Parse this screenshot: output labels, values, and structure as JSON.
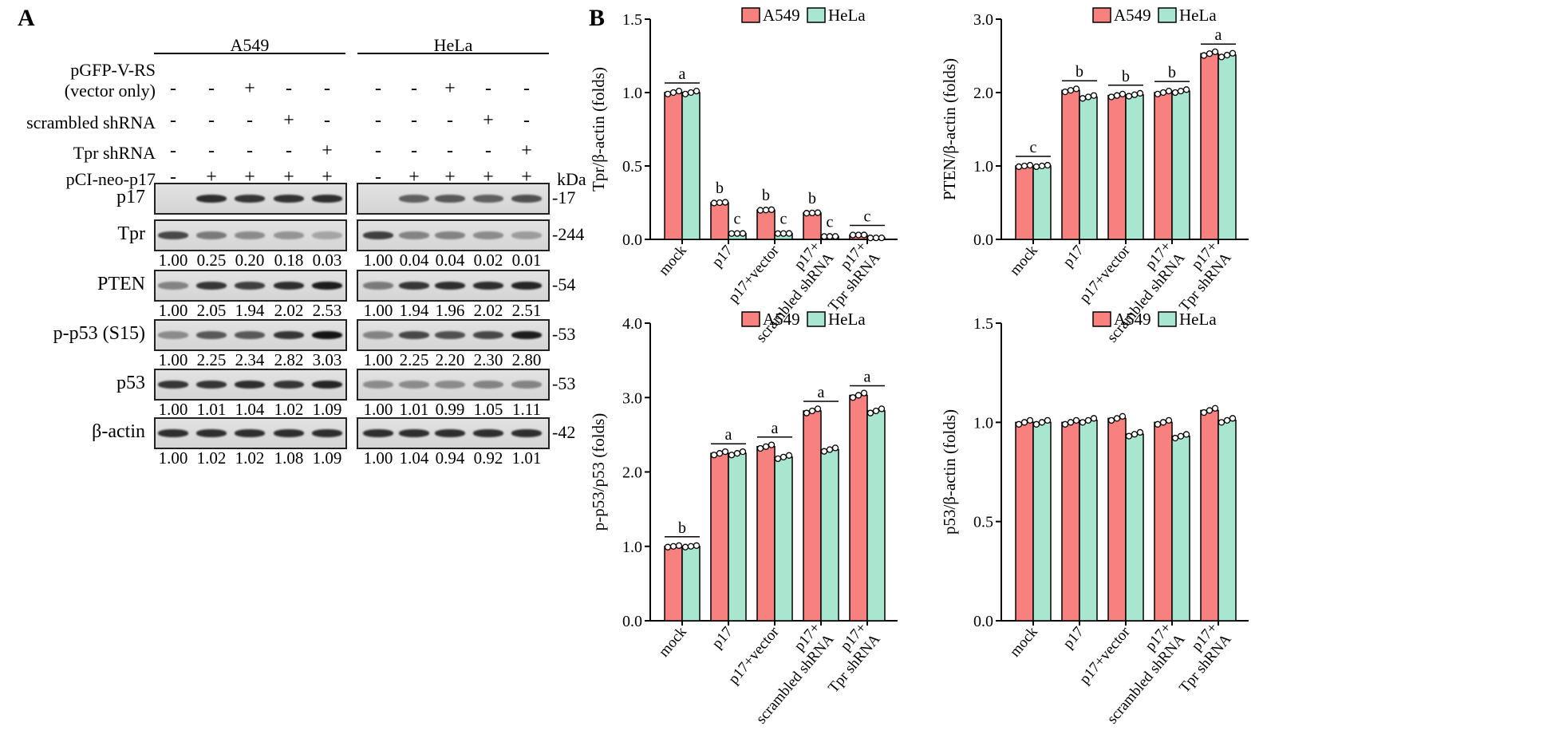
{
  "panel_a": {
    "letter": "A",
    "groups": [
      "A549",
      "HeLa"
    ],
    "conditions": [
      {
        "label": "pGFP-V-RS",
        "symbols": [
          "",
          "",
          "",
          "",
          ""
        ]
      },
      {
        "label": "(vector only)",
        "symbols": [
          "-",
          "-",
          "+",
          "-",
          "-"
        ]
      },
      {
        "label": "scrambled shRNA",
        "symbols": [
          "-",
          "-",
          "-",
          "+",
          "-"
        ]
      },
      {
        "label": "Tpr shRNA",
        "symbols": [
          "-",
          "-",
          "-",
          "-",
          "+"
        ]
      },
      {
        "label": "pCI-neo-p17",
        "symbols": [
          "-",
          "+",
          "+",
          "+",
          "+"
        ]
      }
    ],
    "kda_label": "kDa",
    "blots": [
      {
        "name": "p17",
        "kda": "-17",
        "a549": [
          0.0,
          0.85,
          0.8,
          0.82,
          0.85
        ],
        "hela": [
          0.0,
          0.55,
          0.6,
          0.55,
          0.65
        ],
        "a549_vals": [],
        "hela_vals": []
      },
      {
        "name": "Tpr",
        "kda": "-244",
        "a549": [
          0.7,
          0.4,
          0.3,
          0.25,
          0.15
        ],
        "hela": [
          0.75,
          0.35,
          0.35,
          0.3,
          0.2
        ],
        "a549_vals": [
          "1.00",
          "0.25",
          "0.20",
          "0.18",
          "0.03"
        ],
        "hela_vals": [
          "1.00",
          "0.04",
          "0.04",
          "0.02",
          "0.01"
        ]
      },
      {
        "name": "PTEN",
        "kda": "-54",
        "a549": [
          0.35,
          0.8,
          0.75,
          0.85,
          0.95
        ],
        "hela": [
          0.4,
          0.8,
          0.85,
          0.85,
          0.9
        ],
        "a549_vals": [
          "1.00",
          "2.05",
          "1.94",
          "2.02",
          "2.53"
        ],
        "hela_vals": [
          "1.00",
          "1.94",
          "1.96",
          "2.02",
          "2.51"
        ]
      },
      {
        "name": "p-p53 (S15)",
        "kda": "-53",
        "a549": [
          0.3,
          0.6,
          0.6,
          0.8,
          1.0
        ],
        "hela": [
          0.35,
          0.7,
          0.65,
          0.7,
          0.95
        ],
        "a549_vals": [
          "1.00",
          "2.25",
          "2.34",
          "2.82",
          "3.03"
        ],
        "hela_vals": [
          "1.00",
          "2.25",
          "2.20",
          "2.30",
          "2.80"
        ]
      },
      {
        "name": "p53",
        "kda": "-53",
        "a549": [
          0.8,
          0.8,
          0.85,
          0.8,
          0.9
        ],
        "hela": [
          0.3,
          0.3,
          0.3,
          0.35,
          0.35
        ],
        "a549_vals": [
          "1.00",
          "1.01",
          "1.04",
          "1.02",
          "1.09"
        ],
        "hela_vals": [
          "1.00",
          "1.01",
          "0.99",
          "1.05",
          "1.11"
        ]
      },
      {
        "name": "β-actin",
        "kda": "-42",
        "a549": [
          0.85,
          0.85,
          0.85,
          0.85,
          0.85
        ],
        "hela": [
          0.85,
          0.85,
          0.85,
          0.85,
          0.85
        ],
        "a549_vals": [
          "1.00",
          "1.02",
          "1.02",
          "1.08",
          "1.09"
        ],
        "hela_vals": [
          "1.00",
          "1.04",
          "0.94",
          "0.92",
          "1.01"
        ]
      }
    ]
  },
  "panel_b_letter": "B",
  "colors": {
    "a549": "#f6817f",
    "hela": "#a8e6cf",
    "text": "#000000"
  },
  "chart_data": [
    {
      "type": "bar",
      "title": "",
      "ylabel": "Tpr/β-actin (folds)",
      "ylim": [
        0,
        1.5
      ],
      "yticks": [
        "0.0",
        "0.5",
        "1.0",
        "1.5"
      ],
      "categories": [
        "mock",
        "p17",
        "p17+vector",
        "p17+\nscrambled shRNA",
        "p17+\nTpr shRNA"
      ],
      "legend": [
        "A549",
        "HeLa"
      ],
      "series": [
        {
          "name": "A549",
          "values": [
            1.0,
            0.25,
            0.2,
            0.18,
            0.03
          ]
        },
        {
          "name": "HeLa",
          "values": [
            1.0,
            0.04,
            0.04,
            0.02,
            0.01
          ]
        }
      ],
      "letters": [
        {
          "text": "a",
          "pair": 0
        },
        {
          "text": "b",
          "bar": [
            1,
            0
          ]
        },
        {
          "text": "c",
          "bar": [
            1,
            1
          ]
        },
        {
          "text": "b",
          "bar": [
            2,
            0
          ]
        },
        {
          "text": "c",
          "bar": [
            2,
            1
          ]
        },
        {
          "text": "b",
          "bar": [
            3,
            0
          ]
        },
        {
          "text": "c",
          "bar": [
            3,
            1
          ]
        },
        {
          "text": "c",
          "pair": 4
        }
      ]
    },
    {
      "type": "bar",
      "title": "",
      "ylabel": "PTEN/β-actin (folds)",
      "ylim": [
        0,
        3.0
      ],
      "yticks": [
        "0.0",
        "1.0",
        "2.0",
        "3.0"
      ],
      "categories": [
        "mock",
        "p17",
        "p17+vector",
        "p17+\nscrambled shRNA",
        "p17+\nTpr shRNA"
      ],
      "legend": [
        "A549",
        "HeLa"
      ],
      "series": [
        {
          "name": "A549",
          "values": [
            1.0,
            2.03,
            1.96,
            2.0,
            2.53
          ]
        },
        {
          "name": "HeLa",
          "values": [
            1.0,
            1.94,
            1.97,
            2.02,
            2.51
          ]
        }
      ],
      "letters": [
        {
          "text": "c",
          "pair": 0
        },
        {
          "text": "b",
          "pair": 1
        },
        {
          "text": "b",
          "pair": 2
        },
        {
          "text": "b",
          "pair": 3
        },
        {
          "text": "a",
          "pair": 4
        }
      ]
    },
    {
      "type": "bar",
      "title": "",
      "ylabel": "p-p53/p53 (folds)",
      "ylim": [
        0,
        4.0
      ],
      "yticks": [
        "0.0",
        "1.0",
        "2.0",
        "3.0",
        "4.0"
      ],
      "categories": [
        "mock",
        "p17",
        "p17+vector",
        "p17+\nscrambled shRNA",
        "p17+\nTpr shRNA"
      ],
      "legend": [
        "A549",
        "HeLa"
      ],
      "series": [
        {
          "name": "A549",
          "values": [
            1.0,
            2.25,
            2.34,
            2.82,
            3.03
          ]
        },
        {
          "name": "HeLa",
          "values": [
            1.0,
            2.25,
            2.2,
            2.3,
            2.82
          ]
        }
      ],
      "letters": [
        {
          "text": "b",
          "pair": 0
        },
        {
          "text": "a",
          "pair": 1
        },
        {
          "text": "a",
          "pair": 2
        },
        {
          "text": "a",
          "pair": 3
        },
        {
          "text": "a",
          "pair": 4
        }
      ]
    },
    {
      "type": "bar",
      "title": "",
      "ylabel": "p53/β-actin (folds)",
      "ylim": [
        0,
        1.5
      ],
      "yticks": [
        "0.0",
        "0.5",
        "1.0",
        "1.5"
      ],
      "categories": [
        "mock",
        "p17",
        "p17+vector",
        "p17+\nscrambled shRNA",
        "p17+\nTpr shRNA"
      ],
      "legend": [
        "A549",
        "HeLa"
      ],
      "series": [
        {
          "name": "A549",
          "values": [
            1.0,
            1.0,
            1.02,
            1.0,
            1.06
          ]
        },
        {
          "name": "HeLa",
          "values": [
            1.0,
            1.01,
            0.94,
            0.93,
            1.01
          ]
        }
      ],
      "letters": []
    }
  ]
}
